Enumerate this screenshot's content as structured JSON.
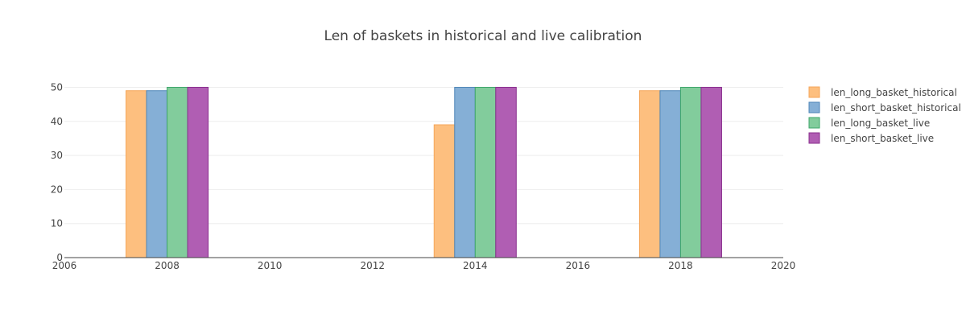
{
  "chart_data": {
    "type": "bar",
    "title": "Len of baskets in historical and live calibration",
    "xlabel": "",
    "ylabel": "",
    "xlim": [
      2006,
      2020
    ],
    "ylim": [
      0,
      52
    ],
    "x_ticks": [
      "2006",
      "2008",
      "2010",
      "2012",
      "2014",
      "2016",
      "2018",
      "2020"
    ],
    "y_ticks": [
      "0",
      "10",
      "20",
      "30",
      "40",
      "50"
    ],
    "grid": true,
    "legend_position": "top-right",
    "categories": [
      2008,
      2014,
      2018
    ],
    "series": [
      {
        "name": "len_long_basket_historical",
        "color": "#fdbf7f",
        "stroke": "#f5a65a",
        "values": [
          49,
          39,
          49
        ]
      },
      {
        "name": "len_short_basket_historical",
        "color": "#85afd6",
        "stroke": "#4f86b8",
        "values": [
          49,
          50,
          49
        ]
      },
      {
        "name": "len_long_basket_live",
        "color": "#82cc9c",
        "stroke": "#3ea66a",
        "values": [
          50,
          50,
          50
        ]
      },
      {
        "name": "len_short_basket_live",
        "color": "#b05eb3",
        "stroke": "#8a2f8e",
        "values": [
          50,
          50,
          50
        ]
      }
    ]
  }
}
